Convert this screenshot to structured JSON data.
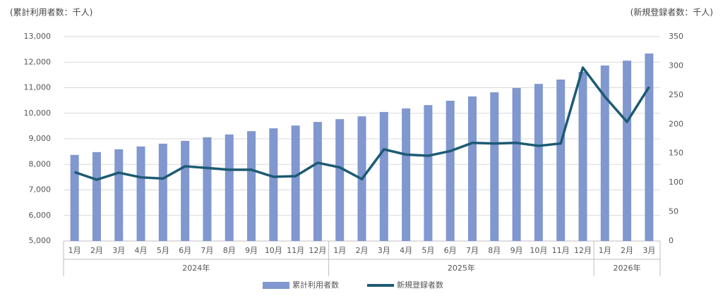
{
  "chart_data": {
    "type": "bar-line",
    "y_label": "(累計利用者数：千人)",
    "y2_label": "(新規登録者数：千人)",
    "groups": [
      {
        "label": "2024年",
        "categories": [
          "1月",
          "2月",
          "3月",
          "4月",
          "5月",
          "6月",
          "7月",
          "8月",
          "9月",
          "10月",
          "11月",
          "12月"
        ]
      },
      {
        "label": "2025年",
        "categories": [
          "1月",
          "2月",
          "3月",
          "4月",
          "5月",
          "6月",
          "7月",
          "8月",
          "9月",
          "10月",
          "11月",
          "12月"
        ]
      },
      {
        "label": "2026年",
        "categories": [
          "1月",
          "2月",
          "3月"
        ]
      }
    ],
    "series": [
      {
        "name": "累計利用者数",
        "type": "bar",
        "color": "#8097cf",
        "values": [
          8370,
          8480,
          8590,
          8700,
          8810,
          8920,
          9060,
          9170,
          9300,
          9410,
          9520,
          9660,
          9770,
          9880,
          10050,
          10190,
          10320,
          10490,
          10660,
          10820,
          10990,
          11150,
          11320,
          11620,
          11870,
          12060,
          12340
        ]
      },
      {
        "name": "新規登録者数",
        "type": "line",
        "axis": "y2",
        "color": "#1d5a73",
        "values": [
          118,
          105,
          117,
          109,
          107,
          128,
          125,
          122,
          122,
          110,
          111,
          134,
          126,
          106,
          157,
          148,
          146,
          154,
          168,
          167,
          168,
          163,
          167,
          297,
          247,
          204,
          264
        ]
      }
    ],
    "ylim": [
      5000,
      13000
    ],
    "yticks": [
      {
        "value": 5000,
        "label": "5,000"
      },
      {
        "value": 6000,
        "label": "6,000"
      },
      {
        "value": 7000,
        "label": "7,000"
      },
      {
        "value": 8000,
        "label": "8,000"
      },
      {
        "value": 9000,
        "label": "9,000"
      },
      {
        "value": 10000,
        "label": "10,000"
      },
      {
        "value": 11000,
        "label": "11,000"
      },
      {
        "value": 12000,
        "label": "12,000"
      },
      {
        "value": 13000,
        "label": "13,000"
      }
    ],
    "y2lim": [
      0,
      350
    ],
    "y2ticks": [
      0,
      50,
      100,
      150,
      200,
      250,
      300,
      350
    ],
    "grid": true
  }
}
